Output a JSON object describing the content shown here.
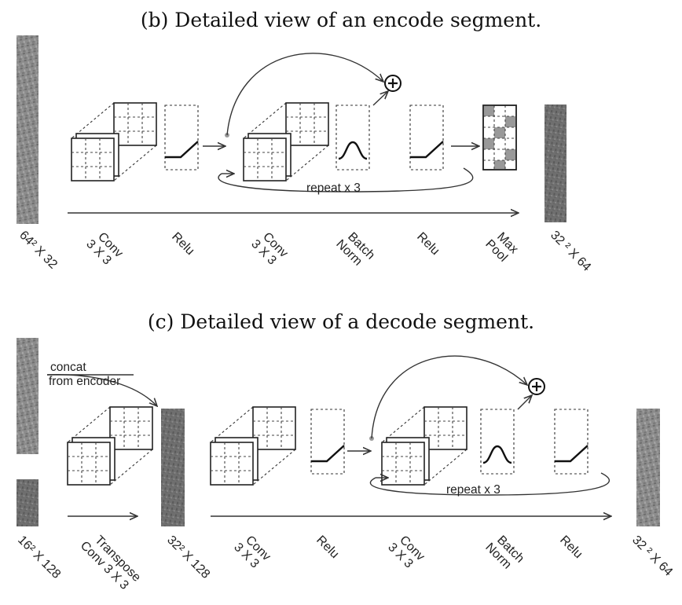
{
  "panel_b": {
    "title": "(b) Detailed view of an encode segment.",
    "repeat_label": "repeat x 3",
    "input_size": "64² X 32",
    "output_size": "32 ² X 64",
    "layers": [
      [
        "Conv",
        "3 X 3"
      ],
      [
        "Relu"
      ],
      [
        "Conv",
        "3 X 3"
      ],
      [
        "Batch",
        "Norm"
      ],
      [
        "Relu"
      ],
      [
        "Max",
        "Pool"
      ]
    ]
  },
  "panel_c": {
    "title": "(c) Detailed view of a decode segment.",
    "concat_label": [
      "concat",
      "from encoder"
    ],
    "repeat_label": "repeat x 3",
    "input_size": "16² X 128",
    "mid_size": "32² X 128",
    "output_size": "32 ² X 64",
    "layers": [
      [
        "Transpose",
        "Conv 3 X 3"
      ],
      [
        "Conv",
        "3 X 3"
      ],
      [
        "Relu"
      ],
      [
        "Conv",
        "3 X 3"
      ],
      [
        "Batch",
        "Norm"
      ],
      [
        "Relu"
      ]
    ]
  },
  "icons": [
    "feature-map-image",
    "conv-kernel-icon",
    "relu-icon",
    "batch-norm-icon",
    "max-pool-icon",
    "plus-circle-icon"
  ]
}
